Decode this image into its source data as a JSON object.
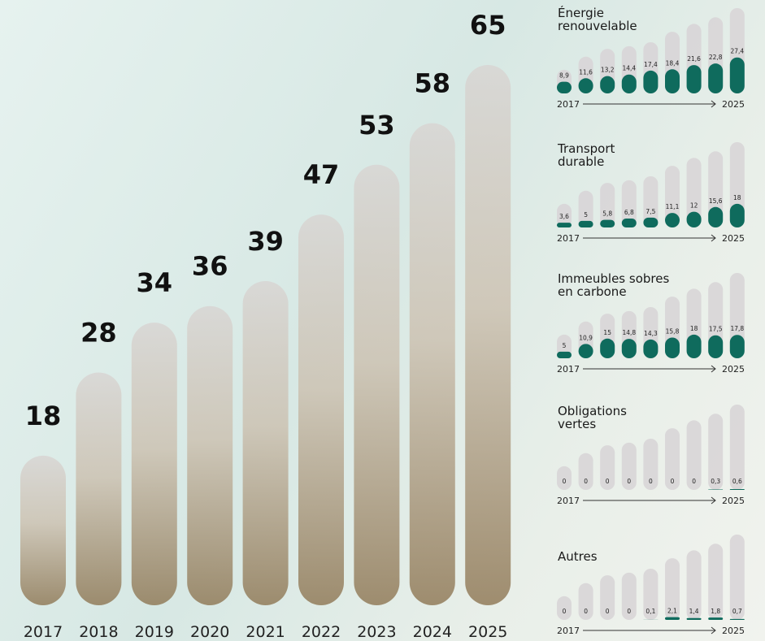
{
  "chart_data": [
    {
      "type": "bar",
      "categories": [
        "2017",
        "2018",
        "2019",
        "2020",
        "2021",
        "2022",
        "2023",
        "2024",
        "2025"
      ],
      "values": [
        18,
        28,
        34,
        36,
        39,
        47,
        53,
        58,
        65
      ]
    },
    {
      "type": "bar",
      "title": "Énergie\nrenouvelable",
      "color": "#0f6b5d",
      "values": [
        8.9,
        11.6,
        13.2,
        14.4,
        17.4,
        18.4,
        21.6,
        22.8,
        27.4
      ],
      "value_labels": [
        "8,9",
        "11,6",
        "13,2",
        "14,4",
        "17,4",
        "18,4",
        "21,6",
        "22,8",
        "27,4"
      ],
      "start_label": "2017",
      "end_label": "2025"
    },
    {
      "type": "bar",
      "title": "Transport\ndurable",
      "color": "#0f6b5d",
      "values": [
        3.6,
        5,
        5.8,
        6.8,
        7.5,
        11.1,
        12,
        15.6,
        18
      ],
      "value_labels": [
        "3,6",
        "5",
        "5,8",
        "6,8",
        "7,5",
        "11,1",
        "12",
        "15,6",
        "18"
      ],
      "start_label": "2017",
      "end_label": "2025"
    },
    {
      "type": "bar",
      "title": "Immeubles sobres\nen carbone",
      "color": "#0f6b5d",
      "values": [
        5,
        10.9,
        15,
        14.8,
        14.3,
        15.8,
        18,
        17.5,
        17.8
      ],
      "value_labels": [
        "5",
        "10,9",
        "15",
        "14,8",
        "14,3",
        "15,8",
        "18",
        "17,5",
        "17,8"
      ],
      "start_label": "2017",
      "end_label": "2025"
    },
    {
      "type": "bar",
      "title": "Obligations\nvertes",
      "color": "#0f6b5d",
      "values": [
        0,
        0,
        0,
        0,
        0,
        0,
        0,
        0.3,
        0.6
      ],
      "value_labels": [
        "0",
        "0",
        "0",
        "0",
        "0",
        "0",
        "0",
        "0,3",
        "0,6"
      ],
      "start_label": "2017",
      "end_label": "2025"
    },
    {
      "type": "bar",
      "title": "Autres",
      "color": "#0f6b5d",
      "values": [
        0,
        0,
        0,
        0,
        0.1,
        2.1,
        1.4,
        1.8,
        0.7
      ],
      "value_labels": [
        "0",
        "0",
        "0",
        "0",
        "0,1",
        "2,1",
        "1,4",
        "1,8",
        "0,7"
      ],
      "start_label": "2017",
      "end_label": "2025"
    }
  ]
}
